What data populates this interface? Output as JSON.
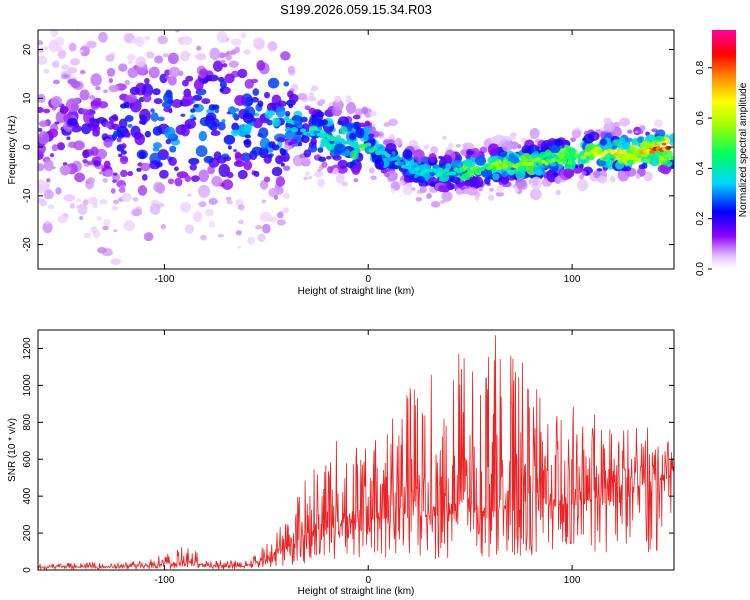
{
  "title": "S199.2026.059.15.34.R03",
  "chart_data": [
    {
      "type": "heatmap",
      "xlabel": "Height of straight line (km)",
      "ylabel": "Frequency (Hz)",
      "xlim": [
        -162,
        150
      ],
      "ylim": [
        -25,
        24
      ],
      "xticks": [
        -100,
        0,
        100
      ],
      "yticks": [
        -20,
        -10,
        0,
        10,
        20
      ],
      "colorbar": {
        "label": "Normalized spectral amplitude",
        "range": [
          0,
          0.95
        ],
        "ticks": [
          0.0,
          0.2,
          0.4,
          0.6,
          0.8
        ],
        "tick_labels": [
          "0.0",
          "0.2",
          "0.4",
          "0.6",
          "0.8"
        ]
      },
      "ridge": {
        "description_points_x": [
          -160,
          -130,
          -100,
          -75,
          -55,
          -40,
          -30,
          -20,
          -10,
          0,
          10,
          20,
          30,
          40,
          50,
          60,
          70,
          80,
          90,
          100,
          110,
          120,
          130,
          140,
          150
        ],
        "frequency": [
          3,
          3,
          4,
          5,
          4,
          6,
          3,
          2,
          1,
          0,
          -2,
          -4,
          -5,
          -5,
          -4.5,
          -4,
          -3.5,
          -3,
          -2.5,
          -2,
          -1.5,
          -1.2,
          -1,
          -0.7,
          -0.6
        ],
        "amplitude": [
          0.15,
          0.2,
          0.3,
          0.3,
          0.3,
          0.35,
          0.35,
          0.4,
          0.45,
          0.45,
          0.4,
          0.35,
          0.4,
          0.45,
          0.5,
          0.5,
          0.55,
          0.55,
          0.55,
          0.5,
          0.6,
          0.7,
          0.6,
          0.8,
          0.85
        ]
      }
    },
    {
      "type": "line",
      "xlabel": "Height of straight line (km)",
      "ylabel": "SNR (10 * v/v)",
      "xlim": [
        -162,
        150
      ],
      "ylim": [
        0,
        1300
      ],
      "xticks": [
        -100,
        0,
        100
      ],
      "yticks": [
        0,
        200,
        400,
        600,
        800,
        1000,
        1200
      ],
      "color": "#ee2222",
      "envelope": {
        "x": [
          -162,
          -120,
          -100,
          -90,
          -75,
          -60,
          -50,
          -40,
          -30,
          -20,
          -10,
          0,
          10,
          20,
          30,
          40,
          50,
          60,
          70,
          80,
          90,
          100,
          110,
          120,
          130,
          140,
          150
        ],
        "base": [
          15,
          15,
          30,
          40,
          20,
          20,
          60,
          120,
          180,
          220,
          250,
          270,
          280,
          280,
          290,
          300,
          300,
          310,
          320,
          330,
          340,
          350,
          380,
          420,
          450,
          480,
          500
        ],
        "peak": [
          40,
          40,
          90,
          130,
          60,
          50,
          150,
          300,
          550,
          700,
          750,
          650,
          850,
          1000,
          1100,
          1250,
          1250,
          1300,
          1300,
          1000,
          950,
          900,
          850,
          800,
          780,
          780,
          780
        ]
      }
    }
  ]
}
